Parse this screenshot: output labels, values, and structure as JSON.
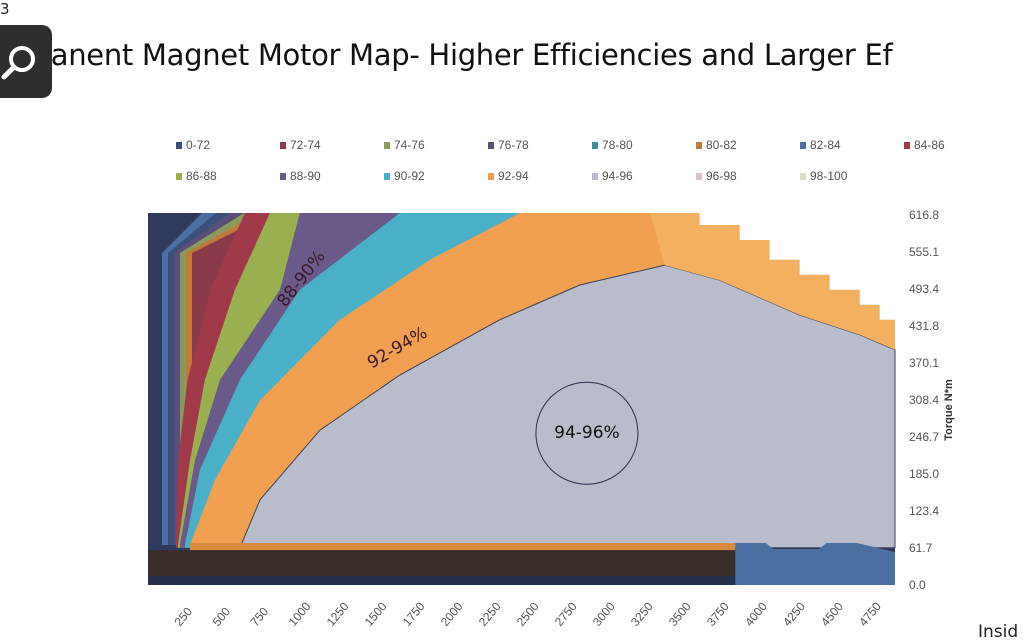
{
  "slide": {
    "number": "3",
    "title": "Permanent Magnet Motor Map- Higher Efficiencies and Larger Ef",
    "footer_fragment": "Insid",
    "zoom_icon": "magnifier-icon"
  },
  "chart_data": {
    "type": "area",
    "title": "Permanent Magnet Motor Map- Higher Efficiencies and Larger Ef",
    "xlabel": "",
    "ylabel": "Torque N*m",
    "xlim": [
      40,
      4950
    ],
    "ylim": [
      0,
      620
    ],
    "xticks": [
      "250",
      "500",
      "750",
      "1000",
      "1250",
      "1500",
      "1750",
      "2000",
      "2250",
      "2500",
      "2750",
      "3000",
      "3250",
      "3500",
      "3750",
      "4000",
      "4250",
      "4500",
      "4750"
    ],
    "yticks": [
      "0.0",
      "61.7",
      "123.4",
      "185.0",
      "246.7",
      "308.4",
      "370.1",
      "431.8",
      "493.4",
      "555.1",
      "616.8"
    ],
    "legend_position": "top",
    "legend": [
      {
        "label": "0-72",
        "color": "#3a4f7a"
      },
      {
        "label": "72-74",
        "color": "#8b3a4a"
      },
      {
        "label": "74-76",
        "color": "#8a9a5a"
      },
      {
        "label": "76-78",
        "color": "#5a4f7a"
      },
      {
        "label": "78-80",
        "color": "#3f8f95"
      },
      {
        "label": "80-82",
        "color": "#c07a3a"
      },
      {
        "label": "82-84",
        "color": "#4a6fa0"
      },
      {
        "label": "84-86",
        "color": "#a03a4a"
      },
      {
        "label": "86-88",
        "color": "#9ab050"
      },
      {
        "label": "88-90",
        "color": "#6a5a8a"
      },
      {
        "label": "90-92",
        "color": "#4ab0c8"
      },
      {
        "label": "92-94",
        "color": "#f0a050"
      },
      {
        "label": "94-96",
        "color": "#b8bccb"
      },
      {
        "label": "96-98",
        "color": "#d8c0cc"
      },
      {
        "label": "98-100",
        "color": "#d8dcc8"
      }
    ],
    "regions": [
      {
        "band": "84-86",
        "color": "#a03a4a",
        "boundary": [
          [
            224,
            67
          ],
          [
            237,
            208
          ],
          [
            300,
            342
          ],
          [
            450,
            492
          ],
          [
            677,
            620
          ]
        ]
      },
      {
        "band": "86-88",
        "color": "#9ab050",
        "boundary": [
          [
            237,
            67
          ],
          [
            316,
            208
          ],
          [
            414,
            342
          ],
          [
            611,
            492
          ],
          [
            841,
            620
          ]
        ]
      },
      {
        "band": "88-90",
        "color": "#6a5a8a",
        "boundary": [
          [
            250,
            67
          ],
          [
            349,
            208
          ],
          [
            513,
            342
          ],
          [
            907,
            492
          ],
          [
            1038,
            620
          ]
        ]
      },
      {
        "band": "90-92",
        "color": "#4ab0c8",
        "boundary": [
          [
            283,
            67
          ],
          [
            381,
            192
          ],
          [
            644,
            342
          ],
          [
            1038,
            492
          ],
          [
            1695,
            620
          ]
        ]
      },
      {
        "band": "92-94",
        "color": "#f0a050",
        "boundary": [
          [
            316,
            67
          ],
          [
            480,
            175
          ],
          [
            776,
            308
          ],
          [
            1301,
            442
          ],
          [
            1893,
            542
          ],
          [
            2484,
            620
          ],
          [
            3338,
            620
          ],
          [
            3666,
            620
          ],
          [
            3666,
            600
          ],
          [
            3929,
            600
          ],
          [
            3929,
            575
          ],
          [
            4126,
            575
          ],
          [
            4126,
            542
          ],
          [
            4323,
            542
          ],
          [
            4323,
            517
          ],
          [
            4520,
            517
          ],
          [
            4520,
            492
          ],
          [
            4718,
            492
          ],
          [
            4718,
            467
          ],
          [
            4849,
            467
          ],
          [
            4849,
            442
          ],
          [
            4950,
            442
          ]
        ]
      },
      {
        "band": "94-96",
        "color": "#b8bccb",
        "boundary": [
          [
            644,
            62
          ],
          [
            776,
            142
          ],
          [
            1170,
            258
          ],
          [
            1695,
            350
          ],
          [
            2352,
            442
          ],
          [
            2878,
            500
          ],
          [
            3436,
            533
          ],
          [
            3798,
            508
          ],
          [
            4323,
            450
          ],
          [
            4718,
            417
          ],
          [
            4950,
            392
          ]
        ]
      }
    ],
    "annotations": [
      {
        "text": "88-90%",
        "rpm": 1050,
        "torque": 510,
        "angle": -52
      },
      {
        "text": "92-94%",
        "rpm": 1680,
        "torque": 395,
        "angle": -30
      },
      {
        "text": "94-96%",
        "rpm": 2925,
        "torque": 253,
        "angle": 0,
        "circled": true
      }
    ]
  }
}
